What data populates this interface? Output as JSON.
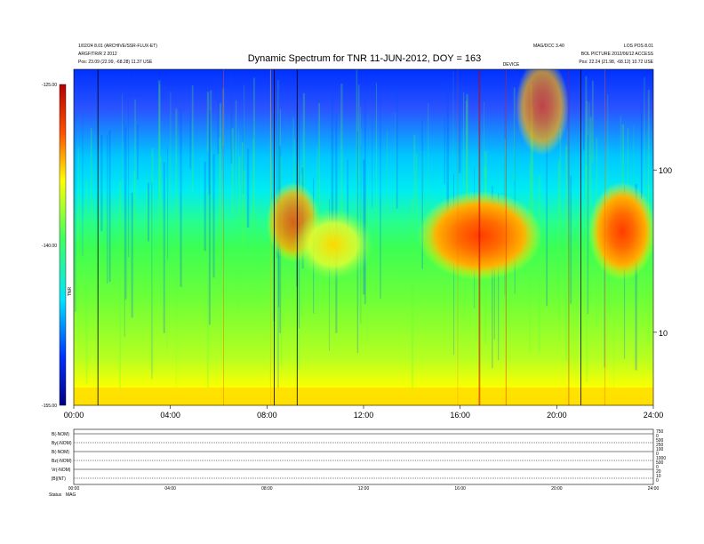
{
  "header": {
    "title": "Dynamic Spectrum for TNR 11-JUN-2012, DOY = 163",
    "left_lines": [
      "1/02/24 8.01 (ARCHIVE/SSR-FLUX-ET)",
      "ARGF/TR/R 2 2012",
      "Pos: 23.09 (22.99, -68.28) 11.37 USE"
    ],
    "right_left_lines": [
      "MAG/DCC 3.40"
    ],
    "right_right_lines": [
      "LOS POS 8.01",
      "BOL PICTURE 2012/06/12 ACCESS",
      "Pos: 22.24 (21.98, -68.12) 10.72 USE"
    ],
    "orbit_marker": "DEVICE"
  },
  "chart_data": {
    "type": "heatmap",
    "title": "Dynamic Spectrum for TNR 11-JUN-2012, DOY = 163",
    "x_range_hours": [
      0,
      24
    ],
    "x_ticks": [
      "00:00",
      "04:00",
      "08:00",
      "12:00",
      "16:00",
      "20:00",
      "24:00"
    ],
    "y_scale": "log",
    "y_right_ticks": [
      "100",
      "10"
    ],
    "colorbar_ticks": [
      "-125.00",
      "-140.00",
      "-155.00"
    ],
    "colorbar_label": "TNR",
    "vertical_lines_hours": [
      1.0,
      8.3,
      9.25,
      21.0
    ],
    "colors": [
      "#00007f",
      "#0030ff",
      "#00e4ff",
      "#40ff60",
      "#ffff00",
      "#ff5000",
      "#b40000"
    ]
  },
  "bottom_panel": {
    "row_labels": [
      "B(-NOM)",
      "By(-NOM)",
      "B(-NOM)",
      "Bz(-NOM)",
      "Vr(-NOM)",
      "|B|(NT)"
    ],
    "right_ticks": [
      "750",
      "0",
      "500",
      "250",
      "100",
      "0",
      "1000",
      "500",
      "0",
      "20",
      "10",
      "0"
    ],
    "x_ticks": [
      "00:00",
      "04:00",
      "08:00",
      "12:00",
      "16:00",
      "20:00",
      "24:00"
    ],
    "footer_labels": [
      "Status",
      "MAG"
    ]
  }
}
